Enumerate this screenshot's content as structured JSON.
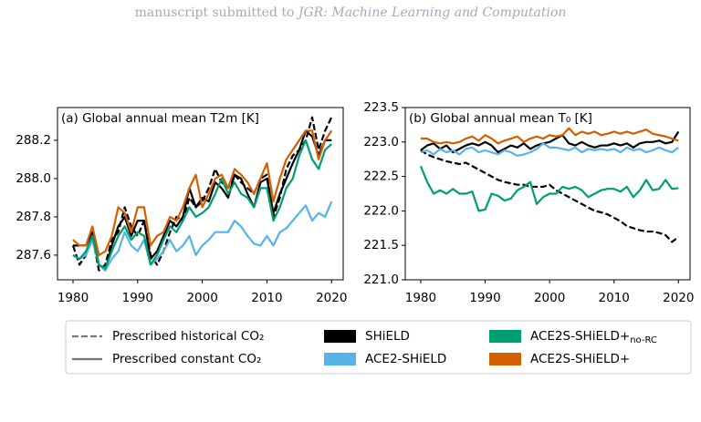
{
  "header": {
    "text": "manuscript submitted to",
    "journal": "JGR: Machine Learning and Computation"
  },
  "chart_data": [
    {
      "type": "line",
      "title": "(a) Global annual mean T2m [K]",
      "x": [
        1980,
        1981,
        1982,
        1983,
        1984,
        1985,
        1986,
        1987,
        1988,
        1989,
        1990,
        1991,
        1992,
        1993,
        1994,
        1995,
        1996,
        1997,
        1998,
        1999,
        2000,
        2001,
        2002,
        2003,
        2004,
        2005,
        2006,
        2007,
        2008,
        2009,
        2010,
        2011,
        2012,
        2013,
        2014,
        2015,
        2016,
        2017,
        2018,
        2019,
        2020
      ],
      "xlim": [
        1977.6,
        2021.8
      ],
      "xticks": [
        1980,
        1990,
        2000,
        2010,
        2020
      ],
      "ylim": [
        287.471,
        288.371
      ],
      "yticks": [
        287.6,
        287.8,
        {
          "value": 288.0,
          "label": "288.0"
        },
        288.2
      ],
      "series": [
        {
          "color": "#000000",
          "linestyle": "dashed",
          "values": [
            287.65,
            287.55,
            287.6,
            287.7,
            287.52,
            287.55,
            287.68,
            287.72,
            287.85,
            287.75,
            287.7,
            287.78,
            287.6,
            287.55,
            287.62,
            287.72,
            287.8,
            287.78,
            287.9,
            287.85,
            287.88,
            287.95,
            288.05,
            287.98,
            287.95,
            288.02,
            287.98,
            287.95,
            287.92,
            288.0,
            288.02,
            287.8,
            287.9,
            288.05,
            288.12,
            288.15,
            288.2,
            288.32,
            288.15,
            288.25,
            288.32
          ]
        },
        {
          "color": "#000000",
          "linestyle": "solid",
          "values": [
            287.65,
            287.65,
            287.65,
            287.72,
            287.55,
            287.52,
            287.65,
            287.75,
            287.8,
            287.7,
            287.78,
            287.78,
            287.58,
            287.62,
            287.7,
            287.78,
            287.75,
            287.8,
            287.95,
            287.85,
            287.9,
            287.88,
            287.98,
            287.95,
            287.9,
            288.02,
            288.0,
            287.92,
            287.85,
            287.98,
            288.0,
            287.82,
            287.92,
            288.0,
            288.08,
            288.15,
            288.25,
            288.22,
            288.12,
            288.2,
            288.2
          ]
        },
        {
          "color": "#56b4e9",
          "linestyle": "solid",
          "values": [
            287.6,
            287.58,
            287.6,
            287.68,
            287.55,
            287.52,
            287.58,
            287.62,
            287.72,
            287.65,
            287.62,
            287.68,
            287.55,
            287.58,
            287.62,
            287.68,
            287.62,
            287.65,
            287.7,
            287.6,
            287.65,
            287.68,
            287.72,
            287.72,
            287.72,
            287.78,
            287.75,
            287.7,
            287.66,
            287.65,
            287.7,
            287.65,
            287.72,
            287.74,
            287.78,
            287.82,
            287.86,
            287.78,
            287.82,
            287.8,
            287.88
          ]
        },
        {
          "color": "#009e73",
          "linestyle": "solid",
          "values": [
            287.6,
            287.58,
            287.62,
            287.7,
            287.55,
            287.53,
            287.62,
            287.7,
            287.75,
            287.68,
            287.72,
            287.7,
            287.55,
            287.6,
            287.68,
            287.75,
            287.72,
            287.78,
            287.85,
            287.8,
            287.82,
            287.85,
            287.92,
            288.0,
            287.92,
            287.98,
            287.92,
            287.9,
            287.85,
            287.95,
            287.95,
            287.78,
            287.85,
            287.95,
            288.0,
            288.12,
            288.2,
            288.1,
            288.05,
            288.15,
            288.18
          ]
        },
        {
          "color": "#d55e00",
          "linestyle": "solid",
          "values": [
            287.68,
            287.65,
            287.65,
            287.75,
            287.6,
            287.62,
            287.7,
            287.85,
            287.82,
            287.72,
            287.85,
            287.85,
            287.65,
            287.7,
            287.72,
            287.8,
            287.78,
            287.85,
            287.95,
            288.02,
            287.85,
            287.92,
            288.0,
            288.02,
            287.95,
            288.05,
            288.02,
            287.98,
            287.92,
            288.0,
            288.08,
            287.88,
            288.0,
            288.1,
            288.15,
            288.2,
            288.25,
            288.25,
            288.1,
            288.2,
            288.25
          ]
        }
      ]
    },
    {
      "type": "line",
      "title": "(b) Global annual mean T₀ [K]",
      "x": [
        1980,
        1981,
        1982,
        1983,
        1984,
        1985,
        1986,
        1987,
        1988,
        1989,
        1990,
        1991,
        1992,
        1993,
        1994,
        1995,
        1996,
        1997,
        1998,
        1999,
        2000,
        2001,
        2002,
        2003,
        2004,
        2005,
        2006,
        2007,
        2008,
        2009,
        2010,
        2011,
        2012,
        2013,
        2014,
        2015,
        2016,
        2017,
        2018,
        2019,
        2020
      ],
      "xlim": [
        1977.6,
        2021.8
      ],
      "xticks": [
        1980,
        1990,
        2000,
        2010,
        2020
      ],
      "ylim": [
        221.0,
        223.5
      ],
      "yticks": [
        {
          "value": 221.0,
          "label": "221.0"
        },
        221.5,
        {
          "value": 222.0,
          "label": "222.0"
        },
        222.5,
        {
          "value": 223.0,
          "label": "223.0"
        },
        223.5
      ],
      "series": [
        {
          "color": "#000000",
          "linestyle": "dashed",
          "values": [
            222.88,
            222.82,
            222.78,
            222.75,
            222.72,
            222.7,
            222.68,
            222.7,
            222.65,
            222.6,
            222.55,
            222.5,
            222.45,
            222.42,
            222.4,
            222.38,
            222.38,
            222.35,
            222.35,
            222.35,
            222.38,
            222.3,
            222.25,
            222.2,
            222.15,
            222.1,
            222.05,
            222.0,
            221.98,
            221.95,
            221.9,
            221.85,
            221.78,
            221.75,
            221.72,
            221.7,
            221.7,
            221.68,
            221.65,
            221.55,
            221.62
          ]
        },
        {
          "color": "#000000",
          "linestyle": "solid",
          "values": [
            222.88,
            222.95,
            222.98,
            222.9,
            222.95,
            222.85,
            222.9,
            222.95,
            222.98,
            222.95,
            223.0,
            222.95,
            222.85,
            222.9,
            222.95,
            222.92,
            222.98,
            222.9,
            222.95,
            222.98,
            223.0,
            223.05,
            223.1,
            222.98,
            222.95,
            223.0,
            222.95,
            222.92,
            222.95,
            222.95,
            222.98,
            222.95,
            222.98,
            222.92,
            222.98,
            223.0,
            223.0,
            223.02,
            222.98,
            223.0,
            223.15
          ]
        },
        {
          "color": "#56b4e9",
          "linestyle": "solid",
          "values": [
            222.85,
            222.88,
            222.82,
            222.9,
            222.85,
            222.88,
            222.82,
            222.9,
            222.92,
            222.85,
            222.88,
            222.85,
            222.82,
            222.88,
            222.85,
            222.8,
            222.82,
            222.85,
            222.9,
            222.98,
            222.92,
            222.92,
            222.9,
            222.88,
            222.92,
            222.85,
            222.9,
            222.88,
            222.9,
            222.88,
            222.9,
            222.85,
            222.92,
            222.88,
            222.9,
            222.85,
            222.88,
            222.92,
            222.88,
            222.85,
            222.92
          ]
        },
        {
          "color": "#009e73",
          "linestyle": "solid",
          "values": [
            222.65,
            222.42,
            222.25,
            222.3,
            222.25,
            222.32,
            222.25,
            222.25,
            222.28,
            222.0,
            222.02,
            222.25,
            222.22,
            222.15,
            222.18,
            222.3,
            222.35,
            222.42,
            222.1,
            222.2,
            222.25,
            222.25,
            222.35,
            222.32,
            222.35,
            222.3,
            222.2,
            222.25,
            222.3,
            222.32,
            222.32,
            222.28,
            222.35,
            222.2,
            222.3,
            222.45,
            222.3,
            222.32,
            222.45,
            222.32,
            222.33
          ]
        },
        {
          "color": "#d55e00",
          "linestyle": "solid",
          "values": [
            223.05,
            223.05,
            223.0,
            222.98,
            223.0,
            222.98,
            223.0,
            223.05,
            223.08,
            223.02,
            223.1,
            223.05,
            222.98,
            223.02,
            223.05,
            223.08,
            223.0,
            223.05,
            223.08,
            223.05,
            223.1,
            223.08,
            223.1,
            223.2,
            223.1,
            223.15,
            223.12,
            223.15,
            223.1,
            223.12,
            223.15,
            223.12,
            223.15,
            223.12,
            223.15,
            223.18,
            223.12,
            223.1,
            223.08,
            223.05,
            223.02
          ]
        }
      ]
    }
  ],
  "legend": {
    "linestyles": [
      {
        "label": "Prescribed historical CO₂",
        "linestyle": "dashed"
      },
      {
        "label": "Prescribed constant CO₂",
        "linestyle": "solid"
      }
    ],
    "models": [
      {
        "name": "SHiELD",
        "color": "#000000"
      },
      {
        "name": "ACE2-SHiELD",
        "color": "#56b4e9"
      },
      {
        "name": "ACE2S-SHiELD+",
        "subscript": "no-RC",
        "color": "#009e73"
      },
      {
        "name": "ACE2S-SHiELD+",
        "color": "#d55e00"
      }
    ]
  }
}
